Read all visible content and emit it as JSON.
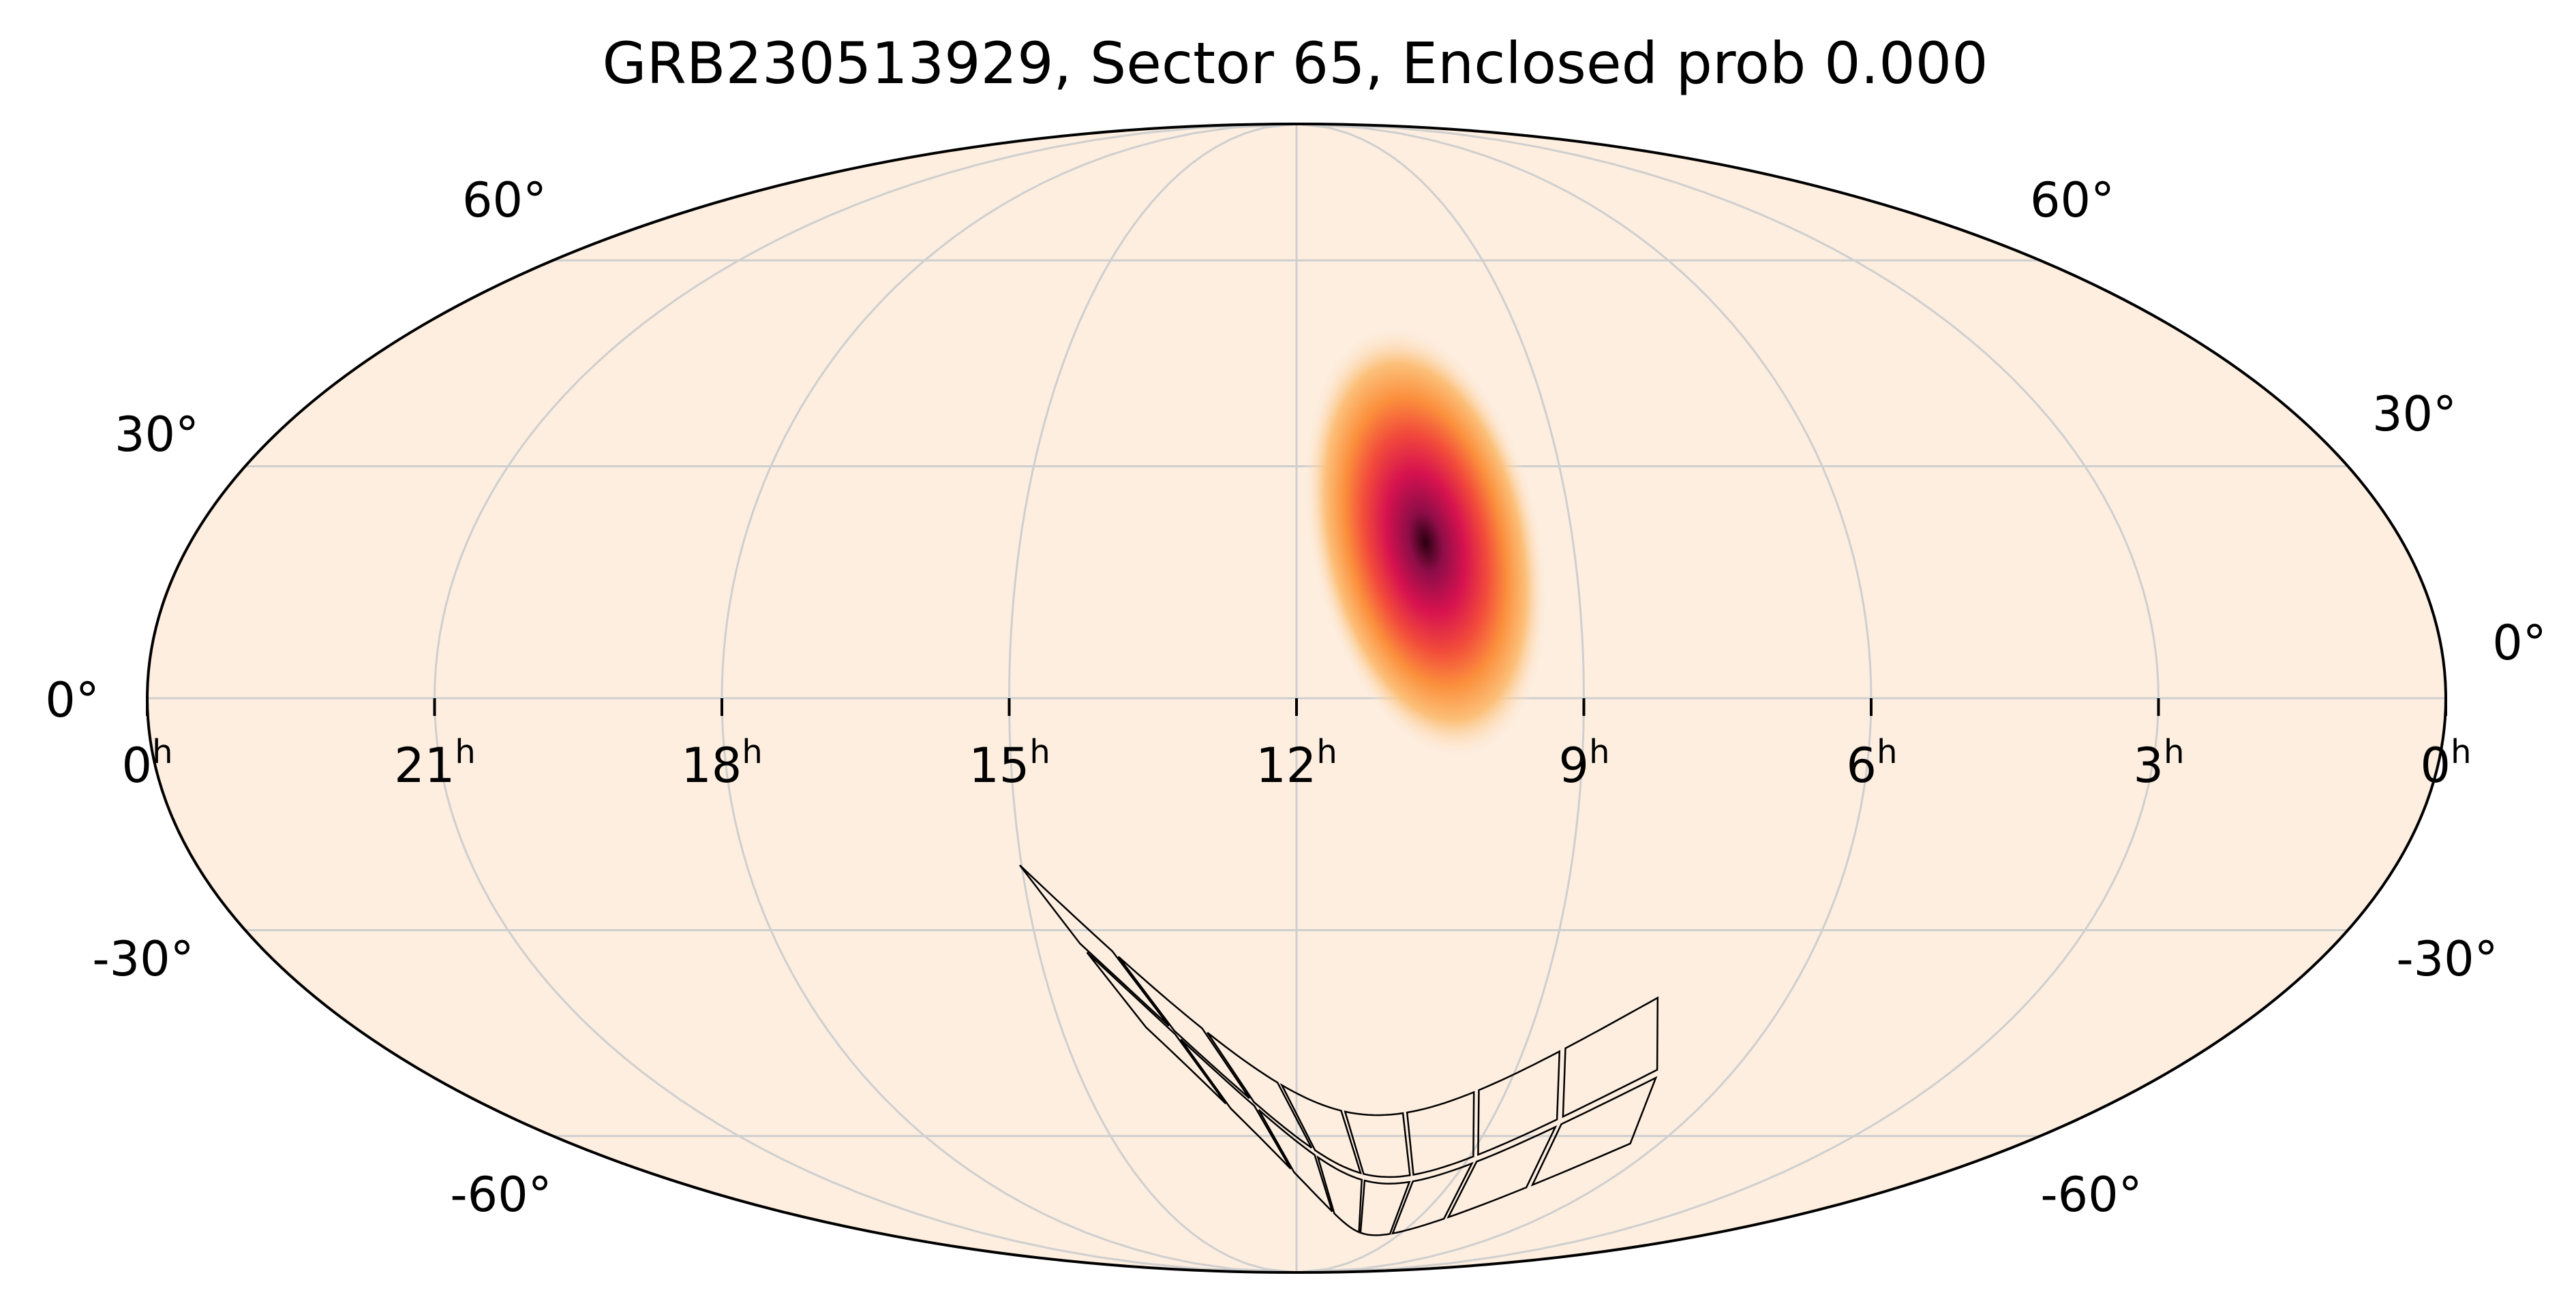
{
  "chart_data": {
    "type": "heatmap",
    "projection": "Mollweide (all-sky)",
    "title": "GRB230513929, Sector 65, Enclosed prob 0.000",
    "ra_tick_labels": [
      {
        "h": "0",
        "sup": "h"
      },
      {
        "h": "21",
        "sup": "h"
      },
      {
        "h": "18",
        "sup": "h"
      },
      {
        "h": "15",
        "sup": "h"
      },
      {
        "h": "12",
        "sup": "h"
      },
      {
        "h": "9",
        "sup": "h"
      },
      {
        "h": "6",
        "sup": "h"
      },
      {
        "h": "3",
        "sup": "h"
      },
      {
        "h": "0",
        "sup": "h"
      }
    ],
    "dec_tick_labels_left": [
      "60°",
      "30°",
      "0°",
      "-30°",
      "-60°"
    ],
    "dec_tick_labels_right": [
      "60°",
      "30°",
      "0°",
      "-30°",
      "-60°"
    ],
    "ra_hours_left_to_right": [
      24,
      21,
      18,
      15,
      12,
      9,
      6,
      3,
      0
    ],
    "dec_gridlines_deg": [
      60,
      30,
      0,
      -30,
      -60
    ],
    "grid": true,
    "background_color": "#fdeee0",
    "colormap": [
      "#fdeee0",
      "#fcc07a",
      "#fb8f3c",
      "#f24a3b",
      "#d6124f",
      "#8e0d48",
      "#2a0010"
    ],
    "probability_blob": {
      "ra_hours": 10.6,
      "dec_deg": 20,
      "sigma_ra_deg": 9,
      "sigma_dec_deg": 14
    },
    "tess_sector_footprint": {
      "sector": 65,
      "cameras": 4,
      "ccds_per_camera": 4,
      "path_ra_hours_start_end": [
        14.5,
        7.0
      ],
      "path_dec_deg_start_end": [
        -32,
        -50
      ],
      "edge_color": "#000000"
    }
  }
}
